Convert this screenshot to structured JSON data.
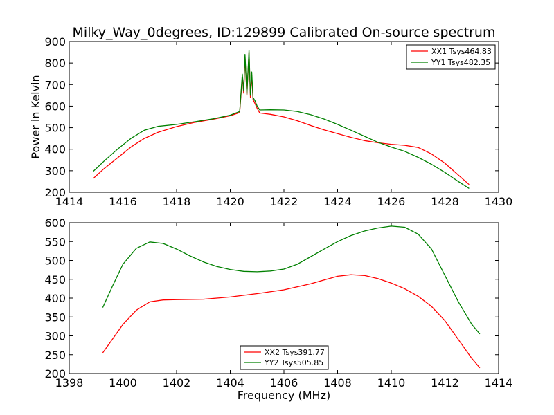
{
  "chart_data": [
    {
      "type": "line",
      "title": "Milky_Way_0degrees, ID:129899 Calibrated On-source spectrum",
      "xlabel": "",
      "ylabel": "Power in Kelvin",
      "xlim": [
        1414,
        1430
      ],
      "ylim": [
        200,
        900
      ],
      "xticks": [
        "1414",
        "1416",
        "1418",
        "1420",
        "1422",
        "1424",
        "1426",
        "1428",
        "1430"
      ],
      "yticks": [
        "200",
        "300",
        "400",
        "500",
        "600",
        "700",
        "800",
        "900"
      ],
      "grid": false,
      "legend_position": "top-right",
      "series": [
        {
          "name": "XX1 Tsys464.83",
          "color": "#ff0000",
          "x": [
            1414.9,
            1415.3,
            1415.8,
            1416.3,
            1416.8,
            1417.3,
            1418.0,
            1418.7,
            1419.4,
            1420.0,
            1420.35,
            1420.45,
            1420.5,
            1420.55,
            1420.62,
            1420.7,
            1420.75,
            1420.8,
            1420.85,
            1420.92,
            1421.0,
            1421.1,
            1421.5,
            1422.0,
            1422.5,
            1423.0,
            1423.5,
            1424.0,
            1424.5,
            1425.0,
            1425.5,
            1426.0,
            1426.5,
            1427.0,
            1427.5,
            1428.0,
            1428.5,
            1428.9
          ],
          "y": [
            265,
            310,
            360,
            410,
            450,
            478,
            505,
            525,
            540,
            555,
            570,
            735,
            660,
            830,
            650,
            850,
            640,
            745,
            630,
            612,
            590,
            568,
            562,
            550,
            532,
            510,
            490,
            472,
            455,
            440,
            430,
            423,
            418,
            408,
            378,
            335,
            280,
            236
          ]
        },
        {
          "name": "YY1 Tsys482.35",
          "color": "#008000",
          "x": [
            1414.9,
            1415.3,
            1415.8,
            1416.3,
            1416.8,
            1417.3,
            1418.0,
            1418.7,
            1419.4,
            1420.0,
            1420.35,
            1420.45,
            1420.5,
            1420.55,
            1420.62,
            1420.7,
            1420.75,
            1420.8,
            1420.85,
            1420.92,
            1421.0,
            1421.1,
            1421.5,
            1422.0,
            1422.5,
            1423.0,
            1423.5,
            1424.0,
            1424.5,
            1425.0,
            1425.5,
            1426.0,
            1426.5,
            1427.0,
            1427.5,
            1428.0,
            1428.5,
            1428.9
          ],
          "y": [
            298,
            345,
            400,
            450,
            488,
            506,
            515,
            528,
            542,
            558,
            575,
            748,
            670,
            840,
            655,
            860,
            650,
            758,
            640,
            625,
            600,
            582,
            583,
            582,
            575,
            560,
            540,
            515,
            488,
            460,
            432,
            410,
            390,
            362,
            330,
            292,
            250,
            218
          ]
        }
      ]
    },
    {
      "type": "line",
      "title": "",
      "xlabel": "Frequency (MHz)",
      "ylabel": "",
      "xlim": [
        1398,
        1414
      ],
      "ylim": [
        200,
        600
      ],
      "xticks": [
        "1398",
        "1400",
        "1402",
        "1404",
        "1406",
        "1408",
        "1410",
        "1412",
        "1414"
      ],
      "yticks": [
        "200",
        "250",
        "300",
        "350",
        "400",
        "450",
        "500",
        "550",
        "600"
      ],
      "grid": false,
      "legend_position": "bottom-center",
      "series": [
        {
          "name": "XX2 Tsys391.77",
          "color": "#ff0000",
          "x": [
            1399.25,
            1399.6,
            1400.0,
            1400.5,
            1401.0,
            1401.5,
            1402.0,
            1403.0,
            1404.0,
            1405.0,
            1406.0,
            1407.0,
            1407.5,
            1408.0,
            1408.5,
            1409.0,
            1409.5,
            1410.0,
            1410.5,
            1411.0,
            1411.5,
            1412.0,
            1412.5,
            1413.0,
            1413.3
          ],
          "y": [
            255,
            290,
            330,
            368,
            390,
            395,
            396,
            397,
            403,
            412,
            422,
            438,
            448,
            458,
            462,
            460,
            452,
            440,
            425,
            405,
            378,
            340,
            290,
            240,
            215
          ]
        },
        {
          "name": "YY2 Tsys505.85",
          "color": "#008000",
          "x": [
            1399.25,
            1399.6,
            1400.0,
            1400.5,
            1401.0,
            1401.5,
            1402.0,
            1402.5,
            1403.0,
            1403.5,
            1404.0,
            1404.5,
            1405.0,
            1405.5,
            1406.0,
            1406.5,
            1407.0,
            1407.5,
            1408.0,
            1408.5,
            1409.0,
            1409.5,
            1410.0,
            1410.5,
            1411.0,
            1411.5,
            1412.0,
            1412.5,
            1413.0,
            1413.3
          ],
          "y": [
            375,
            430,
            490,
            532,
            549,
            545,
            530,
            512,
            496,
            484,
            476,
            471,
            470,
            472,
            477,
            490,
            510,
            530,
            550,
            566,
            578,
            586,
            591,
            588,
            570,
            530,
            460,
            390,
            330,
            305
          ]
        }
      ]
    }
  ]
}
